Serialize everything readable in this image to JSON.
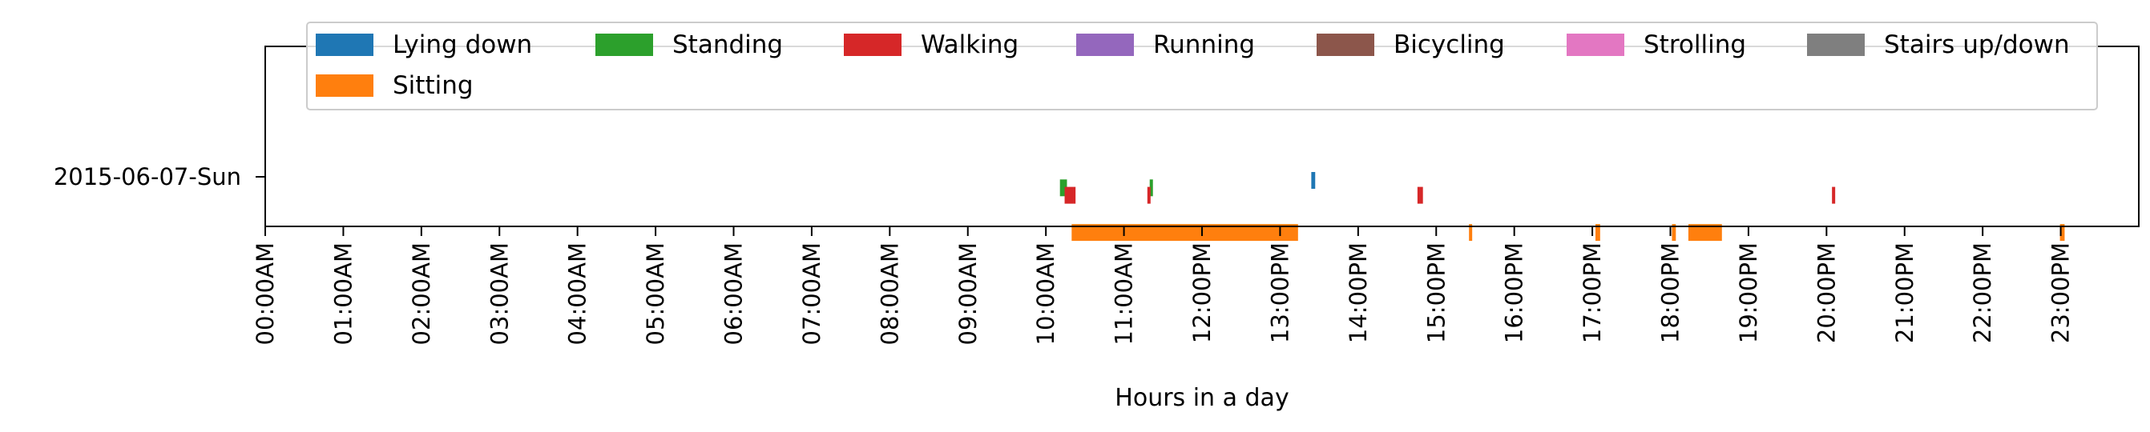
{
  "chart_data": {
    "type": "timeline",
    "xlabel": "Hours in a day",
    "ylabel": "",
    "xlim": [
      0,
      24
    ],
    "x_ticks": [
      "00:00AM",
      "01:00AM",
      "02:00AM",
      "03:00AM",
      "04:00AM",
      "05:00AM",
      "06:00AM",
      "07:00AM",
      "08:00AM",
      "09:00AM",
      "10:00AM",
      "11:00AM",
      "12:00PM",
      "13:00PM",
      "14:00PM",
      "15:00PM",
      "16:00PM",
      "17:00PM",
      "18:00PM",
      "19:00PM",
      "20:00PM",
      "21:00PM",
      "22:00PM",
      "23:00PM"
    ],
    "y_categories": [
      "2015-06-07-Sun"
    ],
    "legend_placement": "top-center",
    "grid": false,
    "series": [
      {
        "name": "Lying down",
        "color": "#1f77b4",
        "row": 0,
        "segments": [
          [
            13.4,
            13.45
          ]
        ]
      },
      {
        "name": "Standing",
        "color": "#2ca02c",
        "row": 1,
        "segments": [
          [
            10.18,
            10.27
          ],
          [
            11.33,
            11.37
          ]
        ]
      },
      {
        "name": "Walking",
        "color": "#d62728",
        "row": 2,
        "segments": [
          [
            10.24,
            10.38
          ],
          [
            11.3,
            11.34
          ],
          [
            14.76,
            14.83
          ],
          [
            20.07,
            20.11
          ]
        ]
      },
      {
        "name": "Running",
        "color": "#9467bd",
        "row": 3,
        "segments": []
      },
      {
        "name": "Bicycling",
        "color": "#8c564b",
        "row": 4,
        "segments": []
      },
      {
        "name": "Strolling",
        "color": "#e377c2",
        "row": 5,
        "segments": []
      },
      {
        "name": "Stairs up/down",
        "color": "#7f7f7f",
        "row": 6,
        "segments": []
      },
      {
        "name": "Sitting",
        "color": "#ff7f0e",
        "row": 7,
        "segments": [
          [
            10.33,
            13.23
          ],
          [
            15.42,
            15.46
          ],
          [
            17.04,
            17.1
          ],
          [
            18.02,
            18.07
          ],
          [
            18.23,
            18.66
          ],
          [
            22.99,
            23.05
          ]
        ]
      }
    ]
  }
}
